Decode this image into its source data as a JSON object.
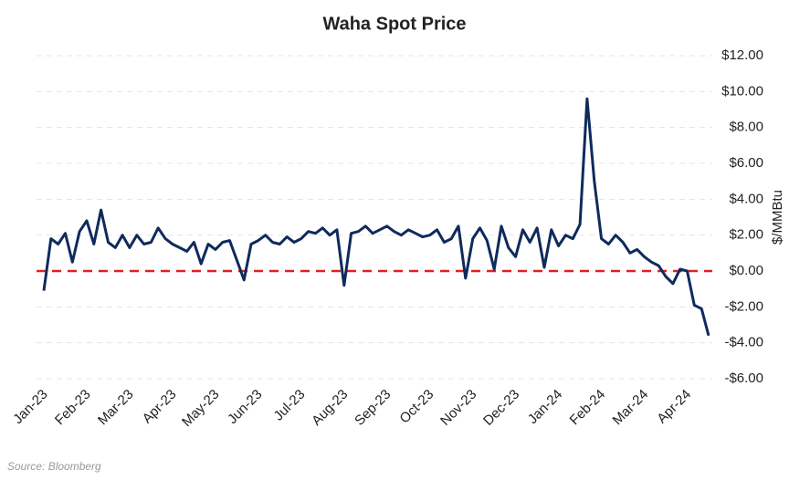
{
  "chart_data": {
    "type": "line",
    "title": "Waha Spot Price",
    "y_axis_label": "$/MMBtu",
    "source": "Source: Bloomberg",
    "categories": [
      "Jan-23",
      null,
      null,
      null,
      null,
      null,
      "Feb-23",
      null,
      null,
      null,
      null,
      null,
      "Mar-23",
      null,
      null,
      null,
      null,
      null,
      "Apr-23",
      null,
      null,
      null,
      null,
      null,
      "May-23",
      null,
      null,
      null,
      null,
      null,
      "Jun-23",
      null,
      null,
      null,
      null,
      null,
      "Jul-23",
      null,
      null,
      null,
      null,
      null,
      "Aug-23",
      null,
      null,
      null,
      null,
      null,
      "Sep-23",
      null,
      null,
      null,
      null,
      null,
      "Oct-23",
      null,
      null,
      null,
      null,
      null,
      "Nov-23",
      null,
      null,
      null,
      null,
      null,
      "Dec-23",
      null,
      null,
      null,
      null,
      null,
      "Jan-24",
      null,
      null,
      null,
      null,
      null,
      "Feb-24",
      null,
      null,
      null,
      null,
      null,
      "Mar-24",
      null,
      null,
      null,
      null,
      null,
      "Apr-24",
      null,
      null,
      null
    ],
    "series": [
      {
        "name": "Waha Spot Price",
        "color": "#0f2a5c",
        "values": [
          -1.1,
          1.8,
          1.5,
          2.1,
          0.5,
          2.2,
          2.8,
          1.5,
          3.4,
          1.6,
          1.3,
          2.0,
          1.3,
          2.0,
          1.5,
          1.6,
          2.4,
          1.8,
          1.5,
          1.3,
          1.1,
          1.6,
          0.4,
          1.5,
          1.2,
          1.6,
          1.7,
          0.6,
          -0.5,
          1.5,
          1.7,
          2.0,
          1.6,
          1.5,
          1.9,
          1.6,
          1.8,
          2.2,
          2.1,
          2.4,
          2.0,
          2.3,
          -0.8,
          2.1,
          2.2,
          2.5,
          2.1,
          2.3,
          2.5,
          2.2,
          2.0,
          2.3,
          2.1,
          1.9,
          2.0,
          2.3,
          1.6,
          1.8,
          2.5,
          -0.4,
          1.8,
          2.4,
          1.7,
          0.1,
          2.5,
          1.3,
          0.8,
          2.3,
          1.6,
          2.4,
          0.2,
          2.3,
          1.4,
          2.0,
          1.8,
          2.6,
          9.6,
          5.0,
          1.8,
          1.5,
          2.0,
          1.6,
          1.0,
          1.2,
          0.8,
          0.5,
          0.3,
          -0.3,
          -0.7,
          0.1,
          0.0,
          -1.9,
          -2.1,
          -3.6
        ]
      }
    ],
    "ylim": [
      -6,
      12
    ],
    "yticks": [
      {
        "value": -6,
        "label": "-$6.00"
      },
      {
        "value": -4,
        "label": "-$4.00"
      },
      {
        "value": -2,
        "label": "-$2.00"
      },
      {
        "value": 0,
        "label": "$0.00"
      },
      {
        "value": 2,
        "label": "$2.00"
      },
      {
        "value": 4,
        "label": "$4.00"
      },
      {
        "value": 6,
        "label": "$6.00"
      },
      {
        "value": 8,
        "label": "$8.00"
      },
      {
        "value": 10,
        "label": "$10.00"
      },
      {
        "value": 12,
        "label": "$12.00"
      }
    ],
    "grid": true,
    "reference_line": {
      "value": 0,
      "color": "#e02020"
    }
  }
}
